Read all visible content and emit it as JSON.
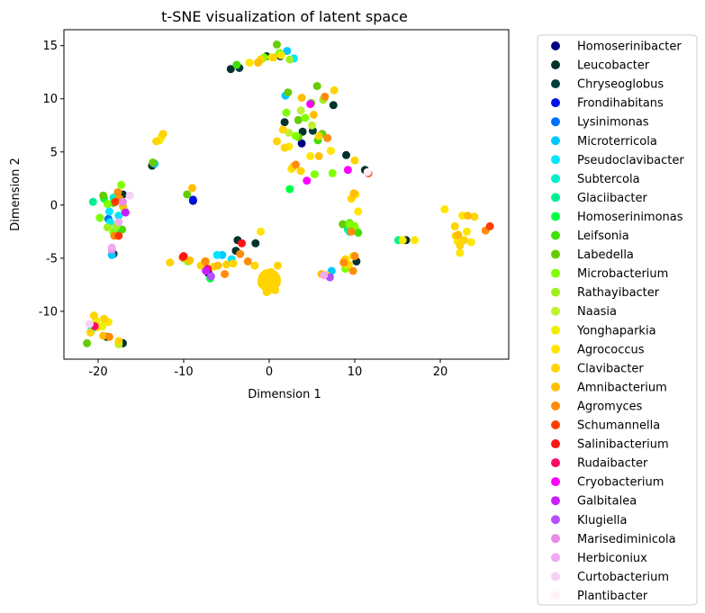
{
  "chart_data": {
    "type": "scatter",
    "title": "t-SNE visualization of latent space",
    "xlabel": "Dimension 1",
    "ylabel": "Dimension 2",
    "xlim": [
      -24,
      28
    ],
    "ylim": [
      -14.5,
      16.5
    ],
    "xticks": [
      -20,
      -10,
      0,
      10,
      20
    ],
    "yticks": [
      -10,
      -5,
      0,
      5,
      10,
      15
    ],
    "grid": false,
    "legend_position": "outside-right",
    "series": [
      {
        "name": "Homoserinibacter",
        "color": "#000080",
        "points": [
          [
            -8.9,
            0.4
          ],
          [
            3.8,
            5.8
          ],
          [
            -7.1,
            -6.4
          ]
        ]
      },
      {
        "name": "Leucobacter",
        "color": "#00332c",
        "points": [
          [
            -17.1,
            1.0
          ],
          [
            -19.0,
            -12.4
          ],
          [
            -17.1,
            -13.0
          ],
          [
            -13.7,
            3.7
          ],
          [
            -4.5,
            12.8
          ],
          [
            -3.7,
            -3.3
          ],
          [
            -3.9,
            -4.3
          ],
          [
            -1.6,
            -3.6
          ],
          [
            1.3,
            14.0
          ],
          [
            1.8,
            7.8
          ],
          [
            3.9,
            6.9
          ],
          [
            7.5,
            9.4
          ],
          [
            9.0,
            4.7
          ],
          [
            10.2,
            -5.3
          ],
          [
            16.0,
            -3.3
          ],
          [
            11.2,
            3.3
          ]
        ]
      },
      {
        "name": "Chryseoglobus",
        "color": "#003c3c",
        "points": [
          [
            -18.2,
            -4.6
          ],
          [
            -3.5,
            12.9
          ],
          [
            -0.3,
            14.0
          ],
          [
            5.1,
            7.0
          ],
          [
            9.8,
            -2.0
          ]
        ]
      },
      {
        "name": "Frondihabitans",
        "color": "#0010e8",
        "points": [
          [
            -8.9,
            0.5
          ]
        ]
      },
      {
        "name": "Lysinimonas",
        "color": "#0070ff",
        "points": [
          [
            -18.8,
            -1.3
          ]
        ]
      },
      {
        "name": "Microterricola",
        "color": "#00c8ff",
        "points": [
          [
            -18.4,
            -4.7
          ],
          [
            -13.4,
            3.9
          ],
          [
            1.9,
            10.3
          ],
          [
            2.1,
            14.5
          ],
          [
            9.4,
            -2.5
          ],
          [
            7.3,
            -6.2
          ],
          [
            -5.5,
            -4.7
          ]
        ]
      },
      {
        "name": "Pseudoclavibacter",
        "color": "#00e6ff",
        "points": [
          [
            -18.6,
            -1.6
          ],
          [
            -18.0,
            -2.4
          ],
          [
            -18.7,
            -0.6
          ],
          [
            -17.6,
            -1.0
          ],
          [
            -6.1,
            -4.7
          ],
          [
            -4.4,
            -5.1
          ],
          [
            2.9,
            13.8
          ],
          [
            6.4,
            10.0
          ]
        ]
      },
      {
        "name": "Subtercola",
        "color": "#00f0c8",
        "points": [
          [
            -20.8,
            -11.8
          ],
          [
            -18.2,
            0.7
          ],
          [
            -17.5,
            -2.4
          ]
        ]
      },
      {
        "name": "Glaciibacter",
        "color": "#00f090",
        "points": [
          [
            -20.6,
            0.3
          ],
          [
            -19.8,
            -1.2
          ],
          [
            15.1,
            -3.3
          ],
          [
            9.2,
            -2.3
          ]
        ]
      },
      {
        "name": "Homoserinimonas",
        "color": "#00ff40",
        "points": [
          [
            -6.9,
            -6.9
          ],
          [
            2.4,
            1.5
          ],
          [
            -19.3,
            0.6
          ]
        ]
      },
      {
        "name": "Leifsonia",
        "color": "#40e000",
        "points": [
          [
            -17.2,
            -2.3
          ],
          [
            -18.2,
            0.2
          ],
          [
            4.9,
            9.6
          ],
          [
            5.7,
            6.1
          ],
          [
            9.4,
            -1.7
          ],
          [
            10.1,
            -2.4
          ],
          [
            10.4,
            -2.6
          ],
          [
            -3.8,
            13.2
          ]
        ]
      },
      {
        "name": "Labedella",
        "color": "#66cc00",
        "points": [
          [
            -21.3,
            -13.0
          ],
          [
            -19.4,
            0.9
          ],
          [
            -13.6,
            4.0
          ],
          [
            2.2,
            10.6
          ],
          [
            3.4,
            8.0
          ],
          [
            5.6,
            11.2
          ],
          [
            6.2,
            6.7
          ],
          [
            8.6,
            -1.8
          ],
          [
            0.9,
            15.1
          ],
          [
            3.4,
            6.4
          ],
          [
            -9.6,
            1.0
          ]
        ]
      },
      {
        "name": "Microbacterium",
        "color": "#80ff00",
        "points": [
          [
            -17.3,
            1.9
          ],
          [
            -18.2,
            -2.6
          ],
          [
            -19.8,
            -1.2
          ],
          [
            -18.9,
            0.1
          ],
          [
            -10.0,
            -5.0
          ],
          [
            -0.6,
            13.9
          ],
          [
            1.2,
            14.3
          ],
          [
            2.0,
            8.7
          ],
          [
            3.1,
            6.5
          ],
          [
            4.2,
            8.2
          ],
          [
            5.3,
            2.9
          ],
          [
            7.4,
            3.0
          ],
          [
            9.4,
            -1.8
          ],
          [
            10.0,
            -2.0
          ],
          [
            8.9,
            -6.0
          ],
          [
            -9.5,
            -5.3
          ]
        ]
      },
      {
        "name": "Rathayibacter",
        "color": "#a0f020",
        "points": [
          [
            -18.9,
            -2.1
          ],
          [
            -17.9,
            -2.0
          ],
          [
            -9.6,
            -5.2
          ],
          [
            -0.9,
            13.7
          ],
          [
            2.4,
            13.7
          ],
          [
            6.3,
            9.9
          ],
          [
            -16.9,
            -0.5
          ]
        ]
      },
      {
        "name": "Naasia",
        "color": "#c0f030",
        "points": [
          [
            -17.6,
            -13.1
          ],
          [
            2.3,
            6.8
          ],
          [
            3.7,
            8.9
          ],
          [
            5.0,
            7.5
          ]
        ]
      },
      {
        "name": "Yonghaparkia",
        "color": "#eef000",
        "points": [
          [
            -20.2,
            -10.9
          ],
          [
            -19.5,
            -11.4
          ],
          [
            -12.8,
            6.1
          ],
          [
            0.3,
            13.9
          ]
        ]
      },
      {
        "name": "Agrococcus",
        "color": "#ffe600",
        "points": [
          [
            -20.1,
            -11.5
          ],
          [
            -18.8,
            -11.0
          ],
          [
            -12.6,
            6.4
          ],
          [
            -2.3,
            13.4
          ],
          [
            -1.0,
            -2.5
          ],
          [
            1.4,
            14.1
          ],
          [
            2.3,
            5.5
          ],
          [
            2.6,
            3.4
          ],
          [
            4.8,
            4.6
          ],
          [
            7.2,
            5.1
          ],
          [
            10.1,
            1.0
          ],
          [
            10.4,
            -0.6
          ],
          [
            20.5,
            -0.4
          ],
          [
            22.0,
            -3.4
          ],
          [
            22.6,
            -1.0
          ],
          [
            23.1,
            -2.5
          ],
          [
            23.6,
            -3.5
          ],
          [
            22.3,
            -4.5
          ],
          [
            15.6,
            -3.3
          ],
          [
            17.0,
            -3.3
          ],
          [
            -0.1,
            -7.2
          ],
          [
            0.4,
            -6.8
          ],
          [
            -0.5,
            -7.6
          ],
          [
            0.1,
            -8.0
          ],
          [
            0.8,
            -7.4
          ],
          [
            -0.8,
            -6.9
          ],
          [
            0.2,
            -6.3
          ],
          [
            9.0,
            -5.6
          ],
          [
            9.8,
            -4.8
          ]
        ]
      },
      {
        "name": "Clavibacter",
        "color": "#ffd400",
        "points": [
          [
            -20.5,
            -10.4
          ],
          [
            -19.3,
            -10.7
          ],
          [
            -20.9,
            -12.0
          ],
          [
            -17.6,
            -12.8
          ],
          [
            -12.4,
            6.7
          ],
          [
            -13.2,
            6.0
          ],
          [
            -1.0,
            13.7
          ],
          [
            0.5,
            13.9
          ],
          [
            0.9,
            6.0
          ],
          [
            1.6,
            7.1
          ],
          [
            1.8,
            5.4
          ],
          [
            2.8,
            3.6
          ],
          [
            3.7,
            3.2
          ],
          [
            5.8,
            6.5
          ],
          [
            7.6,
            10.8
          ],
          [
            10.0,
            4.2
          ],
          [
            9.6,
            0.6
          ],
          [
            8.9,
            -5.1
          ],
          [
            9.3,
            -5.6
          ],
          [
            21.8,
            -2.9
          ],
          [
            22.8,
            -3.3
          ],
          [
            24.0,
            -1.1
          ],
          [
            21.7,
            -2.0
          ],
          [
            22.3,
            -3.8
          ],
          [
            -8.0,
            -5.7
          ],
          [
            -7.4,
            -5.3
          ],
          [
            -5.0,
            -5.6
          ],
          [
            -4.2,
            -5.5
          ],
          [
            -6.5,
            -5.8
          ],
          [
            1.0,
            -5.7
          ],
          [
            -1.7,
            -5.7
          ],
          [
            -0.3,
            -8.2
          ],
          [
            0.7,
            -8.0
          ],
          [
            -0.9,
            -7.4
          ],
          [
            6.7,
            -6.6
          ],
          [
            -11.6,
            -5.4
          ]
        ]
      },
      {
        "name": "Amnibacterium",
        "color": "#ffbe00",
        "points": [
          [
            -9.0,
            1.6
          ],
          [
            -1.3,
            13.4
          ],
          [
            3.8,
            10.1
          ],
          [
            5.2,
            8.5
          ],
          [
            5.8,
            4.6
          ],
          [
            9.9,
            1.1
          ],
          [
            22.1,
            -2.8
          ],
          [
            23.2,
            -1.0
          ],
          [
            -6.0,
            -5.7
          ],
          [
            -9.3,
            -5.2
          ],
          [
            0.4,
            -6.5
          ],
          [
            6.1,
            -6.5
          ],
          [
            -19.4,
            -12.3
          ],
          [
            -17.1,
            -0.1
          ]
        ]
      },
      {
        "name": "Agromyces",
        "color": "#ff8c0a",
        "points": [
          [
            -17.7,
            1.2
          ],
          [
            -18.1,
            -2.9
          ],
          [
            -17.5,
            0.6
          ],
          [
            3.1,
            3.8
          ],
          [
            6.5,
            10.2
          ],
          [
            6.8,
            6.3
          ],
          [
            8.7,
            -5.4
          ],
          [
            9.8,
            -6.2
          ],
          [
            10.0,
            -4.8
          ],
          [
            25.3,
            -2.4
          ],
          [
            -3.4,
            -4.6
          ],
          [
            -5.2,
            -6.5
          ],
          [
            -7.5,
            -5.3
          ],
          [
            -2.5,
            -5.3
          ],
          [
            9.6,
            -2.5
          ],
          [
            -18.7,
            -12.4
          ]
        ]
      },
      {
        "name": "Schumannella",
        "color": "#ff3c00",
        "points": [
          [
            -17.6,
            -2.9
          ],
          [
            -10.1,
            -4.9
          ],
          [
            11.6,
            3.0
          ],
          [
            25.8,
            -2.0
          ],
          [
            -18.0,
            0.3
          ]
        ]
      },
      {
        "name": "Salinibacterium",
        "color": "#ff1414",
        "points": [
          [
            -3.2,
            -3.6
          ],
          [
            -10.0,
            -4.8
          ]
        ]
      },
      {
        "name": "Rudaibacter",
        "color": "#ff0a64",
        "points": [
          [
            -7.2,
            -6.0
          ],
          [
            -20.4,
            -11.4
          ]
        ]
      },
      {
        "name": "Cryobacterium",
        "color": "#ff00ff",
        "points": [
          [
            4.8,
            9.5
          ],
          [
            4.4,
            2.3
          ],
          [
            9.2,
            3.3
          ]
        ]
      },
      {
        "name": "Galbitalea",
        "color": "#c81eff",
        "points": [
          [
            -7.4,
            -6.2
          ],
          [
            -16.8,
            -0.7
          ]
        ]
      },
      {
        "name": "Klugiella",
        "color": "#b450ff",
        "points": [
          [
            -6.8,
            -6.7
          ],
          [
            7.1,
            -6.8
          ]
        ]
      },
      {
        "name": "Marisediminicola",
        "color": "#e68ce6",
        "points": [
          [
            -17.1,
            0.3
          ],
          [
            -18.4,
            -4.2
          ]
        ]
      },
      {
        "name": "Herbiconiux",
        "color": "#f0aaf0",
        "points": [
          [
            -18.4,
            -4.0
          ],
          [
            -17.6,
            -1.6
          ],
          [
            6.4,
            -6.6
          ]
        ]
      },
      {
        "name": "Curtobacterium",
        "color": "#f5d2f5",
        "points": [
          [
            -21.0,
            -11.2
          ],
          [
            -16.3,
            0.9
          ]
        ]
      },
      {
        "name": "Plantibacter",
        "color": "#fff0fa",
        "points": [
          [
            11.5,
            3.1
          ]
        ]
      }
    ],
    "large_points": [
      [
        0.0,
        -7.1
      ]
    ]
  }
}
